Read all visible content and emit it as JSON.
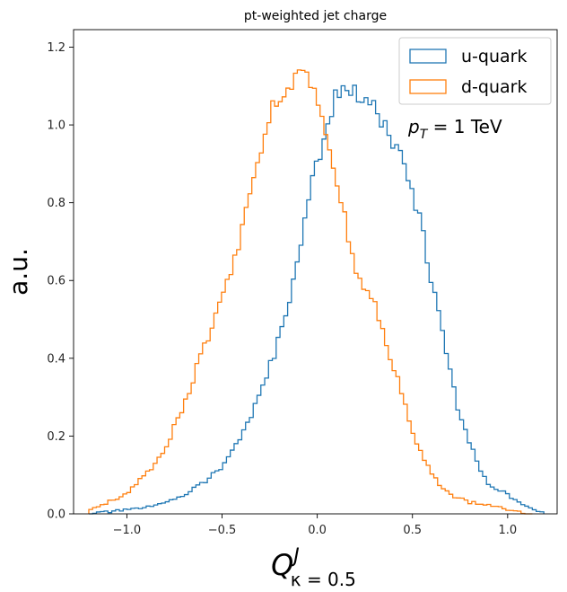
{
  "chart_data": {
    "type": "step-histogram",
    "title": "pt-weighted jet charge",
    "xlabel": {
      "base": "Q",
      "sup": "J",
      "sub": "κ = 0.5"
    },
    "ylabel": "a.u.",
    "xlim": [
      -1.28,
      1.26
    ],
    "ylim": [
      0,
      1.245
    ],
    "x_ticks": [
      -1.0,
      -0.5,
      0.0,
      0.5,
      1.0
    ],
    "x_tick_labels": [
      "−1.0",
      "−0.5",
      "0.0",
      "0.5",
      "1.0"
    ],
    "y_ticks": [
      0.0,
      0.2,
      0.4,
      0.6,
      0.8,
      1.0,
      1.2
    ],
    "y_tick_labels": [
      "0.0",
      "0.2",
      "0.4",
      "0.6",
      "0.8",
      "1.0",
      "1.2"
    ],
    "annotation": {
      "symbol": "p",
      "sub": "T",
      "rest": " = 1 TeV"
    },
    "legend_position": "top-right",
    "series": [
      {
        "name": "u-quark",
        "color": "#1f77b4",
        "anchors": [
          [
            -1.2,
            0.0
          ],
          [
            -1.0,
            0.01
          ],
          [
            -0.85,
            0.02
          ],
          [
            -0.7,
            0.05
          ],
          [
            -0.6,
            0.08
          ],
          [
            -0.5,
            0.12
          ],
          [
            -0.4,
            0.2
          ],
          [
            -0.3,
            0.3
          ],
          [
            -0.2,
            0.45
          ],
          [
            -0.15,
            0.55
          ],
          [
            -0.1,
            0.65
          ],
          [
            -0.05,
            0.8
          ],
          [
            0.0,
            0.9
          ],
          [
            0.05,
            1.0
          ],
          [
            0.1,
            1.08
          ],
          [
            0.15,
            1.1
          ],
          [
            0.2,
            1.08
          ],
          [
            0.25,
            1.05
          ],
          [
            0.3,
            1.05
          ],
          [
            0.35,
            1.0
          ],
          [
            0.4,
            0.95
          ],
          [
            0.45,
            0.9
          ],
          [
            0.5,
            0.82
          ],
          [
            0.55,
            0.74
          ],
          [
            0.6,
            0.6
          ],
          [
            0.65,
            0.48
          ],
          [
            0.7,
            0.36
          ],
          [
            0.75,
            0.25
          ],
          [
            0.8,
            0.18
          ],
          [
            0.85,
            0.12
          ],
          [
            0.9,
            0.08
          ],
          [
            1.0,
            0.05
          ],
          [
            1.1,
            0.02
          ],
          [
            1.19,
            0.0
          ]
        ]
      },
      {
        "name": "d-quark",
        "color": "#ff7f0e",
        "anchors": [
          [
            -1.2,
            0.01
          ],
          [
            -1.1,
            0.03
          ],
          [
            -1.0,
            0.05
          ],
          [
            -0.9,
            0.1
          ],
          [
            -0.8,
            0.17
          ],
          [
            -0.7,
            0.28
          ],
          [
            -0.6,
            0.42
          ],
          [
            -0.5,
            0.55
          ],
          [
            -0.45,
            0.63
          ],
          [
            -0.4,
            0.72
          ],
          [
            -0.35,
            0.82
          ],
          [
            -0.3,
            0.92
          ],
          [
            -0.25,
            1.02
          ],
          [
            -0.2,
            1.08
          ],
          [
            -0.15,
            1.1
          ],
          [
            -0.1,
            1.12
          ],
          [
            -0.05,
            1.15
          ],
          [
            0.0,
            1.05
          ],
          [
            0.05,
            0.95
          ],
          [
            0.1,
            0.85
          ],
          [
            0.15,
            0.75
          ],
          [
            0.2,
            0.63
          ],
          [
            0.25,
            0.58
          ],
          [
            0.3,
            0.55
          ],
          [
            0.35,
            0.45
          ],
          [
            0.4,
            0.38
          ],
          [
            0.45,
            0.3
          ],
          [
            0.5,
            0.22
          ],
          [
            0.55,
            0.15
          ],
          [
            0.6,
            0.1
          ],
          [
            0.7,
            0.05
          ],
          [
            0.8,
            0.03
          ],
          [
            0.95,
            0.02
          ],
          [
            1.0,
            0.01
          ],
          [
            1.13,
            0.0
          ]
        ]
      }
    ]
  }
}
